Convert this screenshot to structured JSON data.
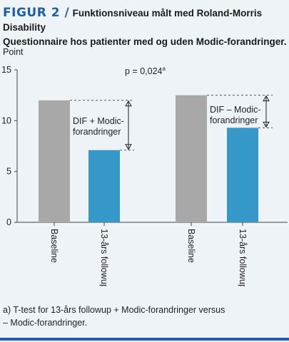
{
  "figure": {
    "label": "FIGUR 2 /",
    "title_line1": "Funktionsniveau målt med Roland-Morris Disability",
    "title_line2": "Questionnaire hos patienter med og uden Modic-forandringer."
  },
  "footnote": {
    "line1": "a) T-test for 13-års followup + Modic-forandringer versus",
    "line2": "– Modic-forandringer."
  },
  "chart_data": {
    "type": "bar",
    "ylabel": "Point",
    "ylim": [
      0,
      15
    ],
    "yticks": [
      "0",
      "5",
      "10",
      "15"
    ],
    "categories": [
      "Baseline",
      "13-års followup",
      "Baseline",
      "13-års followup"
    ],
    "values": [
      12,
      7.1,
      12.5,
      9.3
    ],
    "colors": [
      "#a8a8a8",
      "#3697c9",
      "#a8a8a8",
      "#3697c9"
    ],
    "groups": [
      {
        "label_line1": "DIF + Modic-",
        "label_line2": "forandringer",
        "from": 12,
        "to": 7.1
      },
      {
        "label_line1": "DIF – Modic-",
        "label_line2": "forandringer",
        "from": 12.5,
        "to": 9.3
      }
    ],
    "annotation": {
      "text": "p = 0,024",
      "superscript": "a"
    }
  }
}
